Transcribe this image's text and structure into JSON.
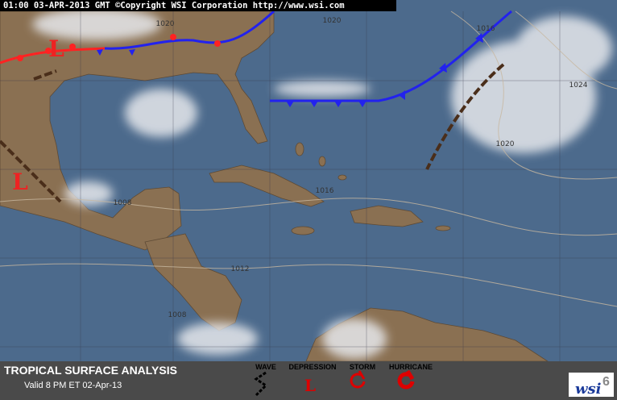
{
  "header": "01:00 03-APR-2013 GMT ©Copyright WSI Corporation  http://www.wsi.com",
  "isobars": [
    "1020",
    "1020",
    "1016",
    "1024",
    "1020",
    "1016",
    "1008",
    "1012",
    "1008"
  ],
  "lows": [
    "L",
    "L"
  ],
  "footer": {
    "title": "TROPICAL SURFACE ANALYSIS",
    "valid": "Valid 8 PM ET 02-Apr-13"
  },
  "legend": {
    "labels": [
      "WAVE",
      "DEPRESSION",
      "STORM",
      "HURRICANE"
    ],
    "depression_symbol": "L"
  },
  "logo": {
    "text": "wsi",
    "number": "6"
  }
}
